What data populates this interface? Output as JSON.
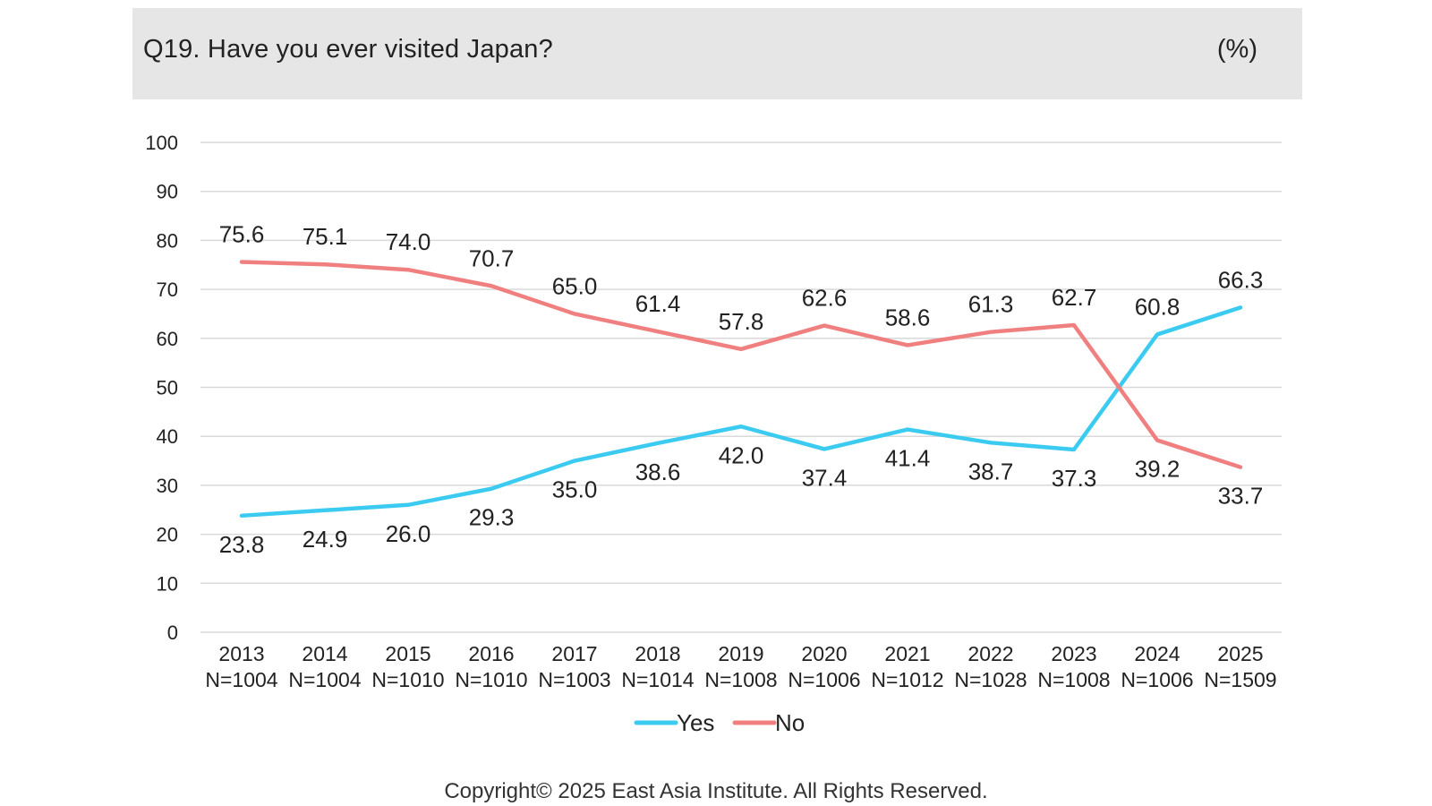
{
  "header": {
    "title": "Q19. Have you ever visited Japan?",
    "unit": "(%)"
  },
  "chart_data": {
    "type": "line",
    "title": "Q19. Have you ever visited Japan?",
    "unit": "(%)",
    "categories": [
      "2013",
      "2014",
      "2015",
      "2016",
      "2017",
      "2018",
      "2019",
      "2020",
      "2021",
      "2022",
      "2023",
      "2024",
      "2025"
    ],
    "sample_sizes": [
      "N=1004",
      "N=1004",
      "N=1010",
      "N=1010",
      "N=1003",
      "N=1014",
      "N=1008",
      "N=1006",
      "N=1012",
      "N=1028",
      "N=1008",
      "N=1006",
      "N=1509"
    ],
    "series": [
      {
        "name": "Yes",
        "color": "#3ccbf0",
        "values": [
          23.8,
          24.9,
          26.0,
          29.3,
          35.0,
          38.6,
          42.0,
          37.4,
          41.4,
          38.7,
          37.3,
          60.8,
          66.3
        ],
        "labels": [
          "23.8",
          "24.9",
          "26.0",
          "29.3",
          "35.0",
          "38.6",
          "42.0",
          "37.4",
          "41.4",
          "38.7",
          "37.3",
          "60.8",
          "66.3"
        ]
      },
      {
        "name": "No",
        "color": "#f08080",
        "values": [
          75.6,
          75.1,
          74.0,
          70.7,
          65.0,
          61.4,
          57.8,
          62.6,
          58.6,
          61.3,
          62.7,
          39.2,
          33.7
        ],
        "labels": [
          "75.6",
          "75.1",
          "74.0",
          "70.7",
          "65.0",
          "61.4",
          "57.8",
          "62.6",
          "58.6",
          "61.3",
          "62.7",
          "39.2",
          "33.7"
        ]
      }
    ],
    "ylim": [
      0,
      100
    ],
    "yticks": [
      "0",
      "10",
      "20",
      "30",
      "40",
      "50",
      "60",
      "70",
      "80",
      "90",
      "100"
    ],
    "grid": true,
    "legend": "bottom-center"
  },
  "footer": {
    "copyright": "Copyright© 2025 East Asia Institute. All Rights Reserved."
  }
}
